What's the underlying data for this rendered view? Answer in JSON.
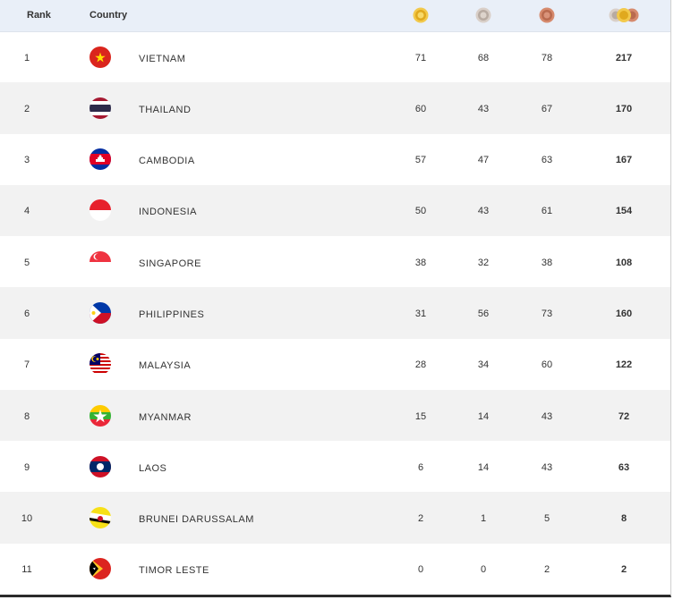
{
  "header": {
    "rank_label": "Rank",
    "country_label": "Country",
    "gold_icon": "gold-medal-icon",
    "silver_icon": "silver-medal-icon",
    "bronze_icon": "bronze-medal-icon",
    "total_icon": "total-medals-icon"
  },
  "colors": {
    "header_bg": "#e9eff8",
    "alt_row_bg": "#f2f2f2",
    "gold": "#e8b923",
    "silver": "#c4b8b0",
    "bronze": "#c8745a"
  },
  "rows": [
    {
      "rank": "1",
      "country": "VIETNAM",
      "flag": "vietnam-flag-icon",
      "gold": "71",
      "silver": "68",
      "bronze": "78",
      "total": "217"
    },
    {
      "rank": "2",
      "country": "THAILAND",
      "flag": "thailand-flag-icon",
      "gold": "60",
      "silver": "43",
      "bronze": "67",
      "total": "170"
    },
    {
      "rank": "3",
      "country": "CAMBODIA",
      "flag": "cambodia-flag-icon",
      "gold": "57",
      "silver": "47",
      "bronze": "63",
      "total": "167"
    },
    {
      "rank": "4",
      "country": "INDONESIA",
      "flag": "indonesia-flag-icon",
      "gold": "50",
      "silver": "43",
      "bronze": "61",
      "total": "154"
    },
    {
      "rank": "5",
      "country": "SINGAPORE",
      "flag": "singapore-flag-icon",
      "gold": "38",
      "silver": "32",
      "bronze": "38",
      "total": "108"
    },
    {
      "rank": "6",
      "country": "PHILIPPINES",
      "flag": "philippines-flag-icon",
      "gold": "31",
      "silver": "56",
      "bronze": "73",
      "total": "160"
    },
    {
      "rank": "7",
      "country": "MALAYSIA",
      "flag": "malaysia-flag-icon",
      "gold": "28",
      "silver": "34",
      "bronze": "60",
      "total": "122"
    },
    {
      "rank": "8",
      "country": "MYANMAR",
      "flag": "myanmar-flag-icon",
      "gold": "15",
      "silver": "14",
      "bronze": "43",
      "total": "72"
    },
    {
      "rank": "9",
      "country": "LAOS",
      "flag": "laos-flag-icon",
      "gold": "6",
      "silver": "14",
      "bronze": "43",
      "total": "63"
    },
    {
      "rank": "10",
      "country": "BRUNEI DARUSSALAM",
      "flag": "brunei-flag-icon",
      "gold": "2",
      "silver": "1",
      "bronze": "5",
      "total": "8"
    },
    {
      "rank": "11",
      "country": "TIMOR LESTE",
      "flag": "timor-leste-flag-icon",
      "gold": "0",
      "silver": "0",
      "bronze": "2",
      "total": "2"
    }
  ]
}
